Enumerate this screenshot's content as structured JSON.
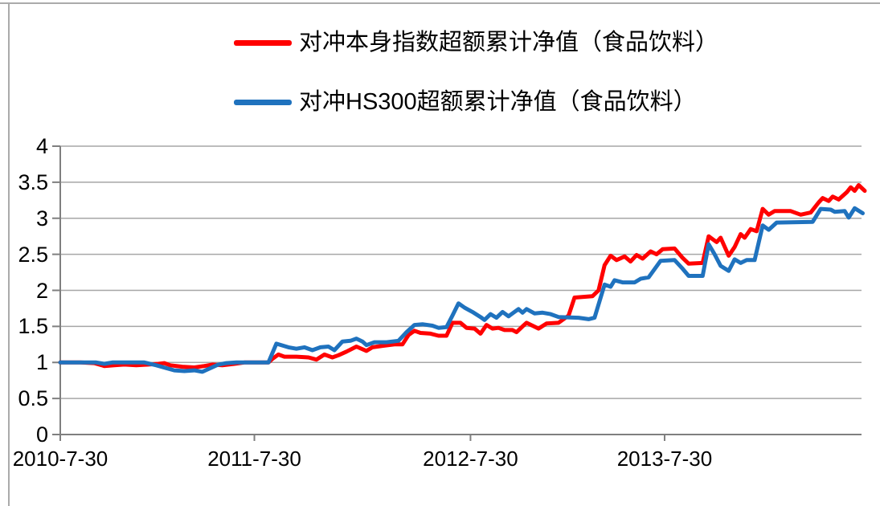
{
  "chart_data": {
    "type": "line",
    "title": "",
    "legend_position": "top-center",
    "grid": "horizontal",
    "background": "#ffffff",
    "colors": {
      "gridline": "#a6a6a6",
      "axis": "#7f7f7f",
      "frame_border": "#ababab",
      "text": "#000000"
    },
    "y_axis": {
      "ticks": [
        "0",
        "0.5",
        "1",
        "1.5",
        "2",
        "2.5",
        "3",
        "3.5",
        "4"
      ],
      "tick_values": [
        0,
        0.5,
        1,
        1.5,
        2,
        2.5,
        3,
        3.5,
        4
      ],
      "range": [
        0,
        4
      ]
    },
    "x_axis": {
      "unit": "years since first date, weekly data",
      "tick_labels": [
        "2010-7-30",
        "2011-7-30",
        "2012-7-30",
        "2013-7-30"
      ],
      "tick_positions_years": [
        0,
        0.97,
        2.05,
        3.02
      ],
      "range_years": [
        0,
        4.05
      ]
    },
    "series": [
      {
        "name": "对冲本身指数超额累计净值（食品饮料）",
        "color": "#ff0000",
        "points": [
          [
            0,
            1.0
          ],
          [
            0.1,
            1.0
          ],
          [
            0.17,
            0.99
          ],
          [
            0.22,
            0.95
          ],
          [
            0.27,
            0.96
          ],
          [
            0.32,
            0.97
          ],
          [
            0.38,
            0.96
          ],
          [
            0.44,
            0.97
          ],
          [
            0.49,
            0.98
          ],
          [
            0.52,
            0.99
          ],
          [
            0.55,
            0.96
          ],
          [
            0.61,
            0.94
          ],
          [
            0.67,
            0.93
          ],
          [
            0.72,
            0.95
          ],
          [
            0.76,
            0.97
          ],
          [
            0.81,
            0.96
          ],
          [
            0.87,
            0.98
          ],
          [
            0.92,
            1.0
          ],
          [
            1.04,
            1.0
          ],
          [
            1.06,
            1.05
          ],
          [
            1.09,
            1.11
          ],
          [
            1.12,
            1.08
          ],
          [
            1.18,
            1.08
          ],
          [
            1.24,
            1.07
          ],
          [
            1.28,
            1.04
          ],
          [
            1.32,
            1.11
          ],
          [
            1.36,
            1.07
          ],
          [
            1.39,
            1.1
          ],
          [
            1.43,
            1.15
          ],
          [
            1.48,
            1.22
          ],
          [
            1.53,
            1.16
          ],
          [
            1.56,
            1.21
          ],
          [
            1.61,
            1.23
          ],
          [
            1.67,
            1.25
          ],
          [
            1.71,
            1.25
          ],
          [
            1.74,
            1.38
          ],
          [
            1.77,
            1.44
          ],
          [
            1.8,
            1.41
          ],
          [
            1.85,
            1.4
          ],
          [
            1.89,
            1.37
          ],
          [
            1.93,
            1.37
          ],
          [
            1.96,
            1.55
          ],
          [
            2.0,
            1.55
          ],
          [
            2.03,
            1.48
          ],
          [
            2.07,
            1.47
          ],
          [
            2.1,
            1.4
          ],
          [
            2.13,
            1.52
          ],
          [
            2.16,
            1.47
          ],
          [
            2.19,
            1.48
          ],
          [
            2.22,
            1.45
          ],
          [
            2.26,
            1.45
          ],
          [
            2.28,
            1.42
          ],
          [
            2.31,
            1.5
          ],
          [
            2.33,
            1.55
          ],
          [
            2.39,
            1.47
          ],
          [
            2.43,
            1.54
          ],
          [
            2.49,
            1.55
          ],
          [
            2.54,
            1.65
          ],
          [
            2.57,
            1.9
          ],
          [
            2.66,
            1.92
          ],
          [
            2.69,
            2.0
          ],
          [
            2.72,
            2.35
          ],
          [
            2.75,
            2.48
          ],
          [
            2.78,
            2.42
          ],
          [
            2.82,
            2.47
          ],
          [
            2.85,
            2.4
          ],
          [
            2.88,
            2.49
          ],
          [
            2.91,
            2.44
          ],
          [
            2.95,
            2.54
          ],
          [
            2.98,
            2.5
          ],
          [
            3.01,
            2.57
          ],
          [
            3.07,
            2.58
          ],
          [
            3.11,
            2.45
          ],
          [
            3.14,
            2.37
          ],
          [
            3.21,
            2.38
          ],
          [
            3.24,
            2.75
          ],
          [
            3.28,
            2.67
          ],
          [
            3.3,
            2.73
          ],
          [
            3.34,
            2.48
          ],
          [
            3.37,
            2.6
          ],
          [
            3.4,
            2.78
          ],
          [
            3.42,
            2.73
          ],
          [
            3.45,
            2.85
          ],
          [
            3.48,
            2.82
          ],
          [
            3.51,
            3.13
          ],
          [
            3.54,
            3.05
          ],
          [
            3.57,
            3.1
          ],
          [
            3.65,
            3.1
          ],
          [
            3.7,
            3.05
          ],
          [
            3.75,
            3.08
          ],
          [
            3.79,
            3.22
          ],
          [
            3.81,
            3.28
          ],
          [
            3.84,
            3.24
          ],
          [
            3.86,
            3.3
          ],
          [
            3.89,
            3.26
          ],
          [
            3.93,
            3.36
          ],
          [
            3.95,
            3.43
          ],
          [
            3.97,
            3.38
          ],
          [
            3.99,
            3.46
          ],
          [
            4.02,
            3.38
          ]
        ]
      },
      {
        "name": "对冲HS300超额累计净值（食品饮料）",
        "color": "#1f72be",
        "points": [
          [
            0,
            1.0
          ],
          [
            0.18,
            1.0
          ],
          [
            0.22,
            0.98
          ],
          [
            0.26,
            1.0
          ],
          [
            0.42,
            1.0
          ],
          [
            0.48,
            0.96
          ],
          [
            0.53,
            0.92
          ],
          [
            0.57,
            0.89
          ],
          [
            0.62,
            0.88
          ],
          [
            0.67,
            0.89
          ],
          [
            0.71,
            0.87
          ],
          [
            0.75,
            0.92
          ],
          [
            0.79,
            0.97
          ],
          [
            0.83,
            0.99
          ],
          [
            0.88,
            1.0
          ],
          [
            1.04,
            1.0
          ],
          [
            1.08,
            1.26
          ],
          [
            1.14,
            1.21
          ],
          [
            1.18,
            1.19
          ],
          [
            1.22,
            1.21
          ],
          [
            1.26,
            1.17
          ],
          [
            1.3,
            1.21
          ],
          [
            1.34,
            1.22
          ],
          [
            1.37,
            1.17
          ],
          [
            1.41,
            1.29
          ],
          [
            1.45,
            1.3
          ],
          [
            1.48,
            1.33
          ],
          [
            1.51,
            1.29
          ],
          [
            1.53,
            1.24
          ],
          [
            1.57,
            1.28
          ],
          [
            1.63,
            1.28
          ],
          [
            1.69,
            1.3
          ],
          [
            1.73,
            1.42
          ],
          [
            1.77,
            1.52
          ],
          [
            1.81,
            1.53
          ],
          [
            1.86,
            1.51
          ],
          [
            1.89,
            1.48
          ],
          [
            1.93,
            1.49
          ],
          [
            1.96,
            1.65
          ],
          [
            1.99,
            1.82
          ],
          [
            2.02,
            1.76
          ],
          [
            2.06,
            1.7
          ],
          [
            2.1,
            1.63
          ],
          [
            2.12,
            1.59
          ],
          [
            2.15,
            1.67
          ],
          [
            2.18,
            1.62
          ],
          [
            2.21,
            1.7
          ],
          [
            2.24,
            1.64
          ],
          [
            2.27,
            1.7
          ],
          [
            2.29,
            1.74
          ],
          [
            2.31,
            1.69
          ],
          [
            2.33,
            1.74
          ],
          [
            2.37,
            1.68
          ],
          [
            2.41,
            1.69
          ],
          [
            2.45,
            1.67
          ],
          [
            2.49,
            1.63
          ],
          [
            2.59,
            1.62
          ],
          [
            2.64,
            1.6
          ],
          [
            2.67,
            1.62
          ],
          [
            2.72,
            2.08
          ],
          [
            2.75,
            2.05
          ],
          [
            2.77,
            2.14
          ],
          [
            2.81,
            2.11
          ],
          [
            2.87,
            2.11
          ],
          [
            2.9,
            2.16
          ],
          [
            2.94,
            2.18
          ],
          [
            3.0,
            2.41
          ],
          [
            3.07,
            2.42
          ],
          [
            3.11,
            2.3
          ],
          [
            3.14,
            2.2
          ],
          [
            3.21,
            2.2
          ],
          [
            3.24,
            2.64
          ],
          [
            3.27,
            2.5
          ],
          [
            3.3,
            2.34
          ],
          [
            3.34,
            2.27
          ],
          [
            3.37,
            2.43
          ],
          [
            3.4,
            2.38
          ],
          [
            3.43,
            2.42
          ],
          [
            3.47,
            2.42
          ],
          [
            3.51,
            2.9
          ],
          [
            3.54,
            2.84
          ],
          [
            3.58,
            2.94
          ],
          [
            3.76,
            2.95
          ],
          [
            3.8,
            3.13
          ],
          [
            3.85,
            3.12
          ],
          [
            3.87,
            3.09
          ],
          [
            3.92,
            3.1
          ],
          [
            3.94,
            3.01
          ],
          [
            3.97,
            3.14
          ],
          [
            4.01,
            3.07
          ]
        ]
      }
    ]
  }
}
